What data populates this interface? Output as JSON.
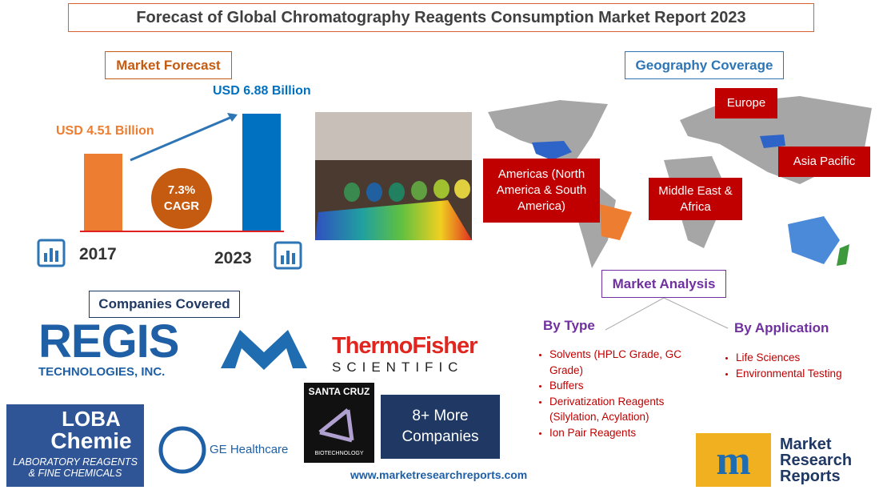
{
  "header": {
    "title": "Forecast of Global Chromatography Reagents Consumption Market Report 2023"
  },
  "forecast": {
    "heading": "Market Forecast",
    "bars": [
      {
        "label": "USD 4.51 Billion",
        "value": 4.51,
        "year": "2017",
        "color": "#ed7d31"
      },
      {
        "label": "USD 6.88 Billion",
        "value": 6.88,
        "year": "2023",
        "color": "#0070c0"
      }
    ],
    "cagr": "7.3%",
    "cagr_label": "CAGR"
  },
  "geography": {
    "heading": "Geography Coverage",
    "regions": [
      "Europe",
      "Americas (North America & South America)",
      "Middle East & Africa",
      "Asia Pacific"
    ]
  },
  "companies": {
    "heading": "Companies Covered",
    "regis": [
      "REGIS",
      "TECHNOLOGIES, INC."
    ],
    "thermo": [
      "ThermoFisher",
      "SCIENTIFIC"
    ],
    "loba": [
      "LOBA",
      "Chemie",
      "LABORATORY REAGENTS",
      "& FINE CHEMICALS"
    ],
    "ge": "GE Healthcare",
    "santa_cruz": [
      "SANTA CRUZ",
      "BIOTECHNOLOGY"
    ],
    "more": "8+ More Companies"
  },
  "analysis": {
    "heading": "Market Analysis",
    "by_type": {
      "heading": "By Type",
      "items": [
        "Solvents (HPLC Grade, GC Grade)",
        "Buffers",
        "Derivatization Reagents (Silylation, Acylation)",
        "Ion Pair Reagents"
      ]
    },
    "by_application": {
      "heading": "By Application",
      "items": [
        "Life Sciences",
        "Environmental Testing"
      ]
    }
  },
  "footer": {
    "url": "www.marketresearchreports.com",
    "brand": [
      "Market",
      "Research",
      "Reports"
    ]
  }
}
